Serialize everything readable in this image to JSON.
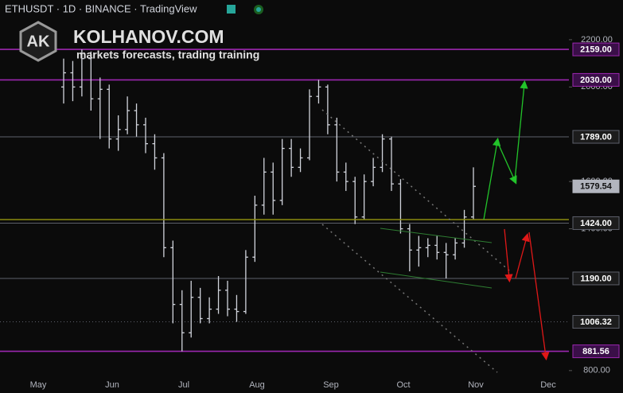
{
  "header": {
    "symbol": "ETHUSDT · 1D · BINANCE · TradingView",
    "logo": "AK",
    "brand": "KOLHANOV.COM",
    "tagline": "markets forecasts, trading training"
  },
  "chart_data": {
    "type": "ohlc",
    "color": "#d1d4dc",
    "categories": [
      "May",
      "Jun",
      "Jul",
      "Aug",
      "Sep",
      "Oct",
      "Nov",
      "Dec"
    ],
    "open": [
      2000,
      2060,
      2000,
      2120,
      1950,
      1990,
      1780,
      1820,
      1900,
      1840,
      1760,
      1700,
      1320,
      1080,
      960,
      1110,
      1020,
      1060,
      1140,
      1060,
      1050,
      1280,
      1500,
      1640,
      1520,
      1740,
      1660,
      1700,
      1960,
      2000,
      1840,
      1640,
      1600,
      1450,
      1600,
      1660,
      1780,
      1590,
      1400,
      1310,
      1320,
      1330,
      1300,
      1290,
      1340,
      1450
    ],
    "high": [
      2120,
      2110,
      2159,
      2150,
      2040,
      2010,
      1880,
      1960,
      1930,
      1870,
      1800,
      1720,
      1350,
      1140,
      1180,
      1150,
      1110,
      1200,
      1180,
      1120,
      1310,
      1540,
      1700,
      1680,
      1780,
      1780,
      1740,
      1990,
      2030,
      2010,
      1870,
      1680,
      1620,
      1630,
      1700,
      1800,
      1790,
      1610,
      1420,
      1370,
      1360,
      1370,
      1340,
      1360,
      1480,
      1660
    ],
    "low": [
      1930,
      1940,
      1960,
      1900,
      1780,
      1740,
      1730,
      1800,
      1790,
      1720,
      1650,
      1280,
      1000,
      881.56,
      940,
      1000,
      1000,
      1040,
      1030,
      1006.32,
      1040,
      1260,
      1460,
      1460,
      1500,
      1620,
      1640,
      1690,
      1930,
      1800,
      1600,
      1560,
      1420,
      1440,
      1580,
      1640,
      1560,
      1380,
      1220,
      1240,
      1280,
      1270,
      1190,
      1270,
      1320,
      1440
    ],
    "close": [
      2060,
      2000,
      2120,
      1950,
      1990,
      1780,
      1820,
      1900,
      1840,
      1760,
      1700,
      1320,
      1080,
      960,
      1110,
      1020,
      1060,
      1140,
      1060,
      1050,
      1280,
      1500,
      1640,
      1520,
      1740,
      1660,
      1700,
      1960,
      2000,
      1840,
      1640,
      1600,
      1450,
      1600,
      1660,
      1780,
      1590,
      1400,
      1310,
      1320,
      1330,
      1300,
      1290,
      1340,
      1450,
      1579.54
    ],
    "ylim": [
      786,
      2368
    ],
    "yticks": [
      {
        "value": 2200,
        "label": "2200.00"
      },
      {
        "value": 2000,
        "label": "2000.00"
      },
      {
        "value": 1600,
        "label": "1600.00"
      },
      {
        "value": 1400,
        "label": "1400.00"
      },
      {
        "value": 800,
        "label": "800.00"
      }
    ],
    "levels": [
      {
        "value": 2159,
        "label": "2159.00",
        "color": "#9c27b0"
      },
      {
        "value": 2030,
        "label": "2030.00",
        "color": "#9c27b0"
      },
      {
        "value": 1789,
        "label": "1789.00",
        "color": "#5d606b"
      },
      {
        "value": 1579.54,
        "label": "1579.54",
        "color": "#b2b5be"
      },
      {
        "value": 1424,
        "label": "1424.00",
        "color": "#5d606b"
      },
      {
        "value": 1190,
        "label": "1190.00",
        "color": "#5d606b"
      },
      {
        "value": 1006.32,
        "label": "1006.32",
        "color": "#5d606b"
      },
      {
        "value": 881.56,
        "label": "881.56",
        "color": "#9c27b0"
      }
    ]
  }
}
